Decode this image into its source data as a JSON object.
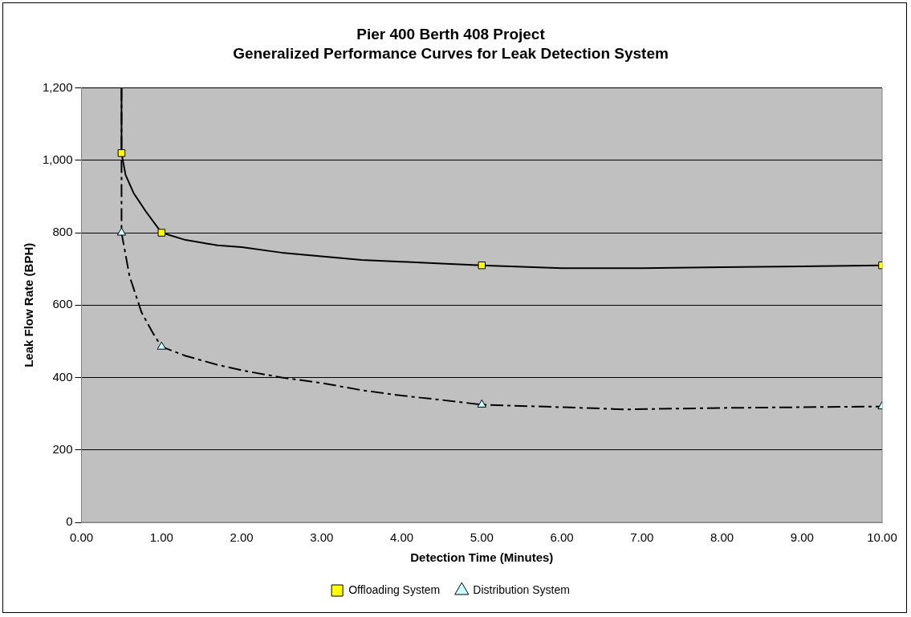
{
  "chart_data": {
    "type": "line",
    "title": "Pier 400 Berth 408 Project",
    "subtitle": "Generalized Performance Curves for Leak Detection System",
    "xlabel": "Detection Time (Minutes)",
    "ylabel": "Leak Flow Rate (BPH)",
    "xlim": [
      0,
      10
    ],
    "xticks": [
      {
        "value": 0,
        "label": "0.00"
      },
      {
        "value": 1,
        "label": "1.00"
      },
      {
        "value": 2,
        "label": "2.00"
      },
      {
        "value": 3,
        "label": "3.00"
      },
      {
        "value": 4,
        "label": "4.00"
      },
      {
        "value": 5,
        "label": "5.00"
      },
      {
        "value": 6,
        "label": "6.00"
      },
      {
        "value": 7,
        "label": "7.00"
      },
      {
        "value": 8,
        "label": "8.00"
      },
      {
        "value": 9,
        "label": "9.00"
      },
      {
        "value": 10,
        "label": "10.00"
      }
    ],
    "ylim": [
      0,
      1200
    ],
    "yticks": [
      0,
      200,
      400,
      600,
      800,
      {
        "value": 1000,
        "label": "1,000"
      },
      {
        "value": 1200,
        "label": "1,200"
      }
    ],
    "grid": "y",
    "legend": "bottom",
    "series": [
      {
        "type": "line",
        "color": "#000000",
        "line_style": "solid",
        "marker": "none",
        "x": [
          0.5,
          0.5,
          0.55,
          0.65,
          0.8,
          1,
          1.3,
          1.7,
          2,
          2.5,
          3,
          3.5,
          4,
          4.5,
          5,
          6,
          7,
          8,
          9,
          10
        ],
        "values": [
          1200,
          1020,
          960,
          910,
          860,
          800,
          780,
          765,
          760,
          745,
          735,
          725,
          720,
          715,
          710,
          702,
          702,
          705,
          707,
          710
        ]
      },
      {
        "type": "line",
        "color": "#000000",
        "line_style": "dashed",
        "marker": "none",
        "x": [
          0.5,
          0.5,
          0.6,
          0.75,
          0.9,
          1,
          1.3,
          1.7,
          2,
          2.5,
          3,
          3.5,
          4,
          4.5,
          5,
          6,
          6.8,
          8,
          9,
          10
        ],
        "values": [
          1200,
          800,
          680,
          580,
          520,
          485,
          460,
          435,
          420,
          400,
          385,
          365,
          350,
          338,
          325,
          318,
          312,
          316,
          318,
          320
        ]
      },
      {
        "type": "scatter",
        "name": "Offloading System",
        "color": "#ffff00",
        "marker": "square",
        "x": [
          0.5,
          1,
          5,
          10
        ],
        "values": [
          1020,
          800,
          710,
          710
        ]
      },
      {
        "type": "scatter",
        "name": "Distribution System",
        "color": "#ccffff",
        "marker": "triangle",
        "x": [
          0.5,
          1,
          5,
          10
        ],
        "values": [
          800,
          485,
          325,
          320
        ]
      }
    ]
  }
}
